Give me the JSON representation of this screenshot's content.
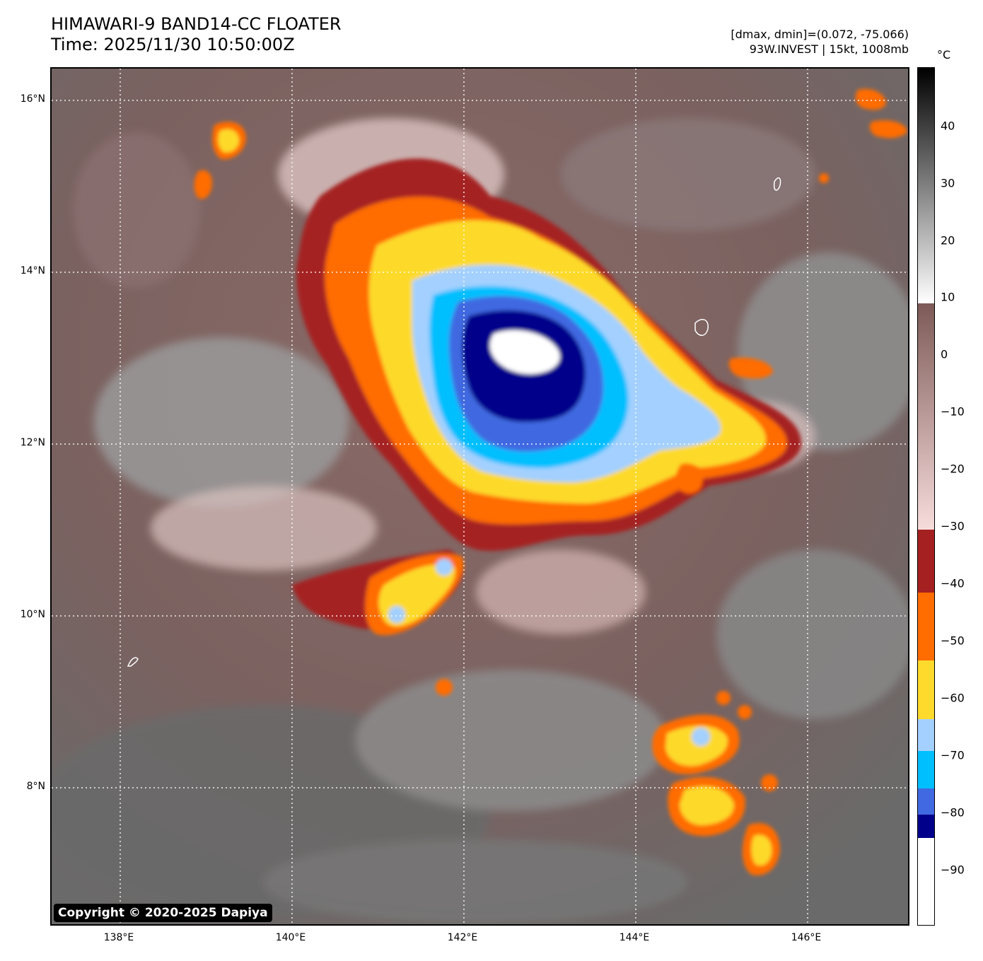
{
  "title": {
    "line1": "HIMAWARI-9 BAND14-CC FLOATER",
    "line2": "Time: 2025/11/30 10:50:00Z"
  },
  "info": {
    "line1": "[dmax, dmin]=(0.072, -75.066)",
    "line2": "93W.INVEST | 15kt, 1008mb"
  },
  "copyright": "Copyright © 2020-2025 Dapiya",
  "lat_labels": [
    "16°N",
    "14°N",
    "12°N",
    "10°N",
    "8°N"
  ],
  "lon_labels": [
    "138°E",
    "140°E",
    "142°E",
    "144°E",
    "146°E"
  ],
  "colorbar": {
    "unit": "°C",
    "ticks": [
      "40",
      "30",
      "20",
      "10",
      "0",
      "−10",
      "−20",
      "−30",
      "−40",
      "−50",
      "−60",
      "−70",
      "−80",
      "−90"
    ],
    "colors": {
      "warm_black": "#000000",
      "warm_white": "#ffffff",
      "brown": "#7d5a57",
      "pink": "#f7dcdc",
      "dark_red": "#a52020",
      "orange": "#ff6c00",
      "yellow": "#fdda2c",
      "light_blue": "#a3d0ff",
      "cyan": "#00bfff",
      "royal_blue": "#4169e1",
      "navy": "#00008b",
      "white": "#ffffff"
    }
  }
}
